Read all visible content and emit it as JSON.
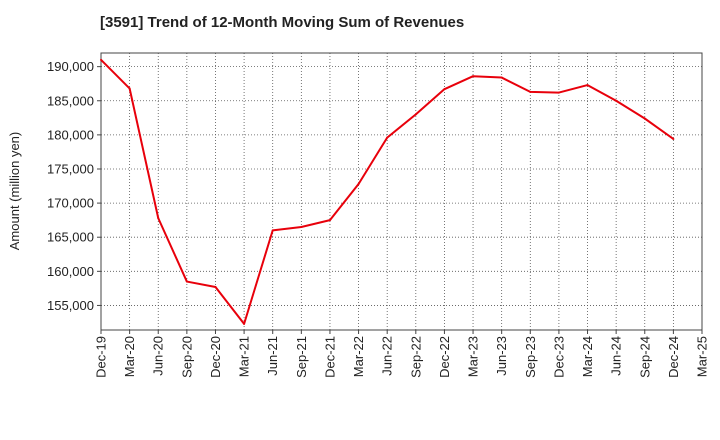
{
  "chart_data": {
    "type": "line",
    "title": "[3591]  Trend of 12-Month Moving Sum of Revenues",
    "xlabel": "",
    "ylabel": "Amount (million yen)",
    "categories": [
      "Dec-19",
      "Mar-20",
      "Jun-20",
      "Sep-20",
      "Dec-20",
      "Mar-21",
      "Jun-21",
      "Sep-21",
      "Dec-21",
      "Mar-22",
      "Jun-22",
      "Sep-22",
      "Dec-22",
      "Mar-23",
      "Jun-23",
      "Sep-23",
      "Dec-23",
      "Mar-24",
      "Jun-24",
      "Sep-24",
      "Dec-24",
      "Mar-25"
    ],
    "ylim": [
      151400,
      192000
    ],
    "yticks": [
      155000,
      160000,
      165000,
      170000,
      175000,
      180000,
      185000,
      190000
    ],
    "ytick_labels": [
      "155,000",
      "160,000",
      "165,000",
      "170,000",
      "175,000",
      "180,000",
      "185,000",
      "190,000"
    ],
    "grid": true,
    "color": "#e8000b",
    "series": [
      {
        "values": [
          191000,
          186800,
          167800,
          158500,
          157700,
          152300,
          166000,
          166500,
          167500,
          172800,
          179600,
          183000,
          186700,
          188600,
          188400,
          186300,
          186200,
          187300,
          185000,
          182400,
          179400,
          null
        ]
      }
    ]
  }
}
